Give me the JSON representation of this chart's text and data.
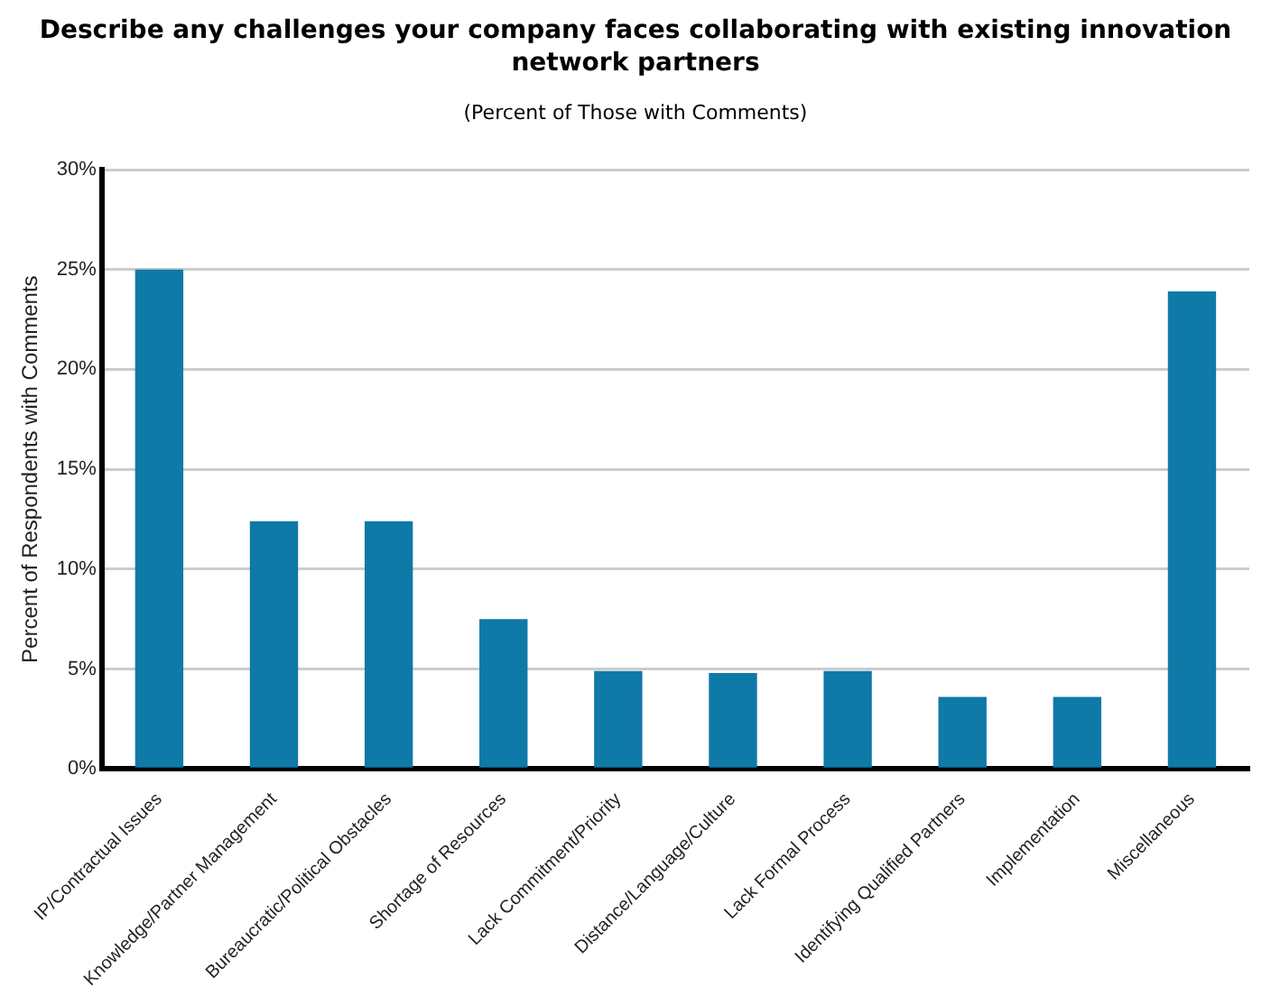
{
  "chart_data": {
    "type": "bar",
    "title": "Describe any challenges your company faces collaborating with existing innovation network partners",
    "subtitle": "(Percent of Those with Comments)",
    "ylabel": "Percent of Respondents with Comments",
    "categories": [
      "IP/Contractual Issues",
      "Knowledge/Partner Management",
      "Bureaucratic/Political Obstacles",
      "Shortage of Resources",
      "Lack Commitment/Priority",
      "Distance/Language/Culture",
      "Lack Formal Process",
      "Identifying Qualified Partners",
      "Implementation",
      "Miscellaneous"
    ],
    "values": [
      25,
      12.4,
      12.4,
      7.5,
      4.9,
      4.8,
      4.9,
      3.6,
      3.6,
      23.9
    ],
    "color": "#0f79a8",
    "ylim": [
      0,
      30
    ],
    "yticks": [
      {
        "value": 0,
        "label": "0%"
      },
      {
        "value": 5,
        "label": "5%"
      },
      {
        "value": 10,
        "label": "10%"
      },
      {
        "value": 15,
        "label": "15%"
      },
      {
        "value": 20,
        "label": "20%"
      },
      {
        "value": 25,
        "label": "25%"
      },
      {
        "value": 30,
        "label": "30%"
      }
    ],
    "grid": "y",
    "legend": false
  }
}
